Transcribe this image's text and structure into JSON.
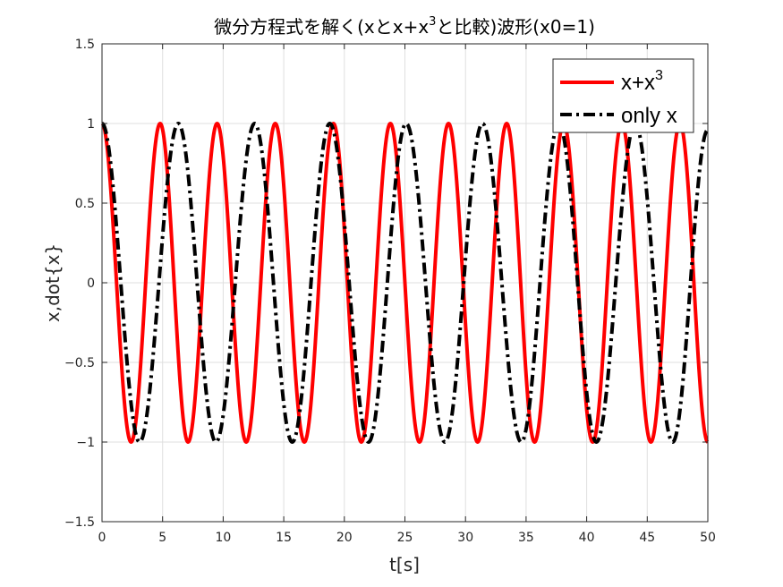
{
  "chart_data": {
    "type": "line",
    "title": "微分方程式を解く(xとx+x³と比較)波形(x0=1)",
    "title_parts": {
      "prefix": "微分方程式を解く(xとx+x",
      "superscript": "3",
      "suffix": "と比較)波形(x0=1)"
    },
    "xlabel": "t[s]",
    "ylabel": "x,dot{x}",
    "xlim": [
      0,
      50
    ],
    "ylim": [
      -1.5,
      1.5
    ],
    "x_ticks": [
      0,
      5,
      10,
      15,
      20,
      25,
      30,
      35,
      40,
      45,
      50
    ],
    "x_tick_labels": [
      "0",
      "5",
      "10",
      "15",
      "20",
      "25",
      "30",
      "35",
      "40",
      "45",
      "50"
    ],
    "y_ticks": [
      -1.5,
      -1,
      -0.5,
      0,
      0.5,
      1,
      1.5
    ],
    "y_tick_labels": [
      "−1.5",
      "−1",
      "−0.5",
      "0",
      "0.5",
      "1",
      "1.5"
    ],
    "grid": true,
    "legend_position": "top-right",
    "series": [
      {
        "name": "x+x³",
        "name_parts": {
          "base": "x+x",
          "superscript": "3"
        },
        "color": "#ff0000",
        "line_style": "solid",
        "x": [
          0,
          2.4,
          4.8,
          7.1,
          9.5,
          11.9,
          14.3,
          16.7,
          19.1,
          21.4,
          23.8,
          26.2,
          28.6,
          31.0,
          33.4,
          35.7,
          38.1,
          40.5,
          42.9,
          45.3,
          47.7,
          50.0
        ],
        "y": [
          1,
          -1,
          1,
          -1,
          1,
          -1,
          1,
          -1,
          1,
          -1,
          1,
          -1,
          1,
          -1,
          1,
          -1,
          1,
          -1,
          1,
          -1,
          1,
          -1
        ]
      },
      {
        "name": "only x",
        "color": "#000000",
        "line_style": "dashdot",
        "x": [
          0,
          3.1,
          6.3,
          9.4,
          12.6,
          15.7,
          18.8,
          22.0,
          25.1,
          28.3,
          31.4,
          34.6,
          37.7,
          40.8,
          44.0,
          47.1,
          50.0
        ],
        "y": [
          1,
          -1,
          1,
          -1,
          1,
          -1,
          1,
          -1,
          1,
          -1,
          1,
          -1,
          1,
          -1,
          1,
          -1,
          0.96
        ]
      }
    ]
  }
}
